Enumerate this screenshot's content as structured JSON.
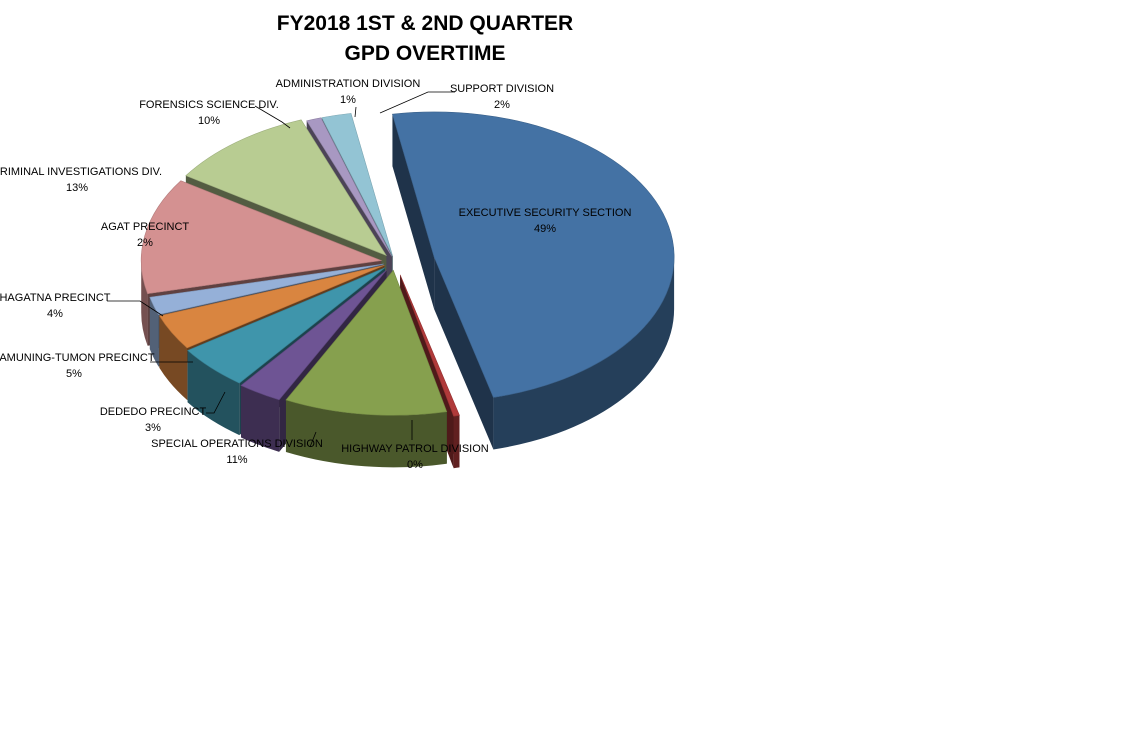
{
  "chart_data": {
    "type": "pie",
    "title": "FY2018 1ST & 2ND QUARTER",
    "subtitle": "GPD OVERTIME",
    "slices": [
      {
        "label": "EXECUTIVE SECURITY SECTION",
        "pct_label": "49%",
        "value": 49,
        "color": "#4472a4"
      },
      {
        "label": "HIGHWAY PATROL DIVISION",
        "pct_label": "0%",
        "value": 0.4,
        "color": "#b03a3a"
      },
      {
        "label": "SPECIAL OPERATIONS DIVISION",
        "pct_label": "11%",
        "value": 11,
        "color": "#86a04e"
      },
      {
        "label": "DEDEDO PRECINCT",
        "pct_label": "3%",
        "value": 3,
        "color": "#6e5494"
      },
      {
        "label": "TAMUNING-TUMON PRECINCT",
        "pct_label": "5%",
        "value": 5,
        "color": "#3f95ab"
      },
      {
        "label": "HAGATNA PRECINCT",
        "pct_label": "4%",
        "value": 4,
        "color": "#d98540"
      },
      {
        "label": "AGAT PRECINCT",
        "pct_label": "2%",
        "value": 2,
        "color": "#95b0d8"
      },
      {
        "label": "CRIMINAL INVESTIGATIONS DIV.",
        "pct_label": "13%",
        "value": 13,
        "color": "#d49191"
      },
      {
        "label": "FORENSICS SCIENCE DIV.",
        "pct_label": "10%",
        "value": 10,
        "color": "#b8cc92"
      },
      {
        "label": "ADMINISTRATION DIVISION",
        "pct_label": "1%",
        "value": 1,
        "color": "#a898c2"
      },
      {
        "label": "SUPPORT DIVISION",
        "pct_label": "2%",
        "value": 2,
        "color": "#93c4d4"
      }
    ]
  }
}
